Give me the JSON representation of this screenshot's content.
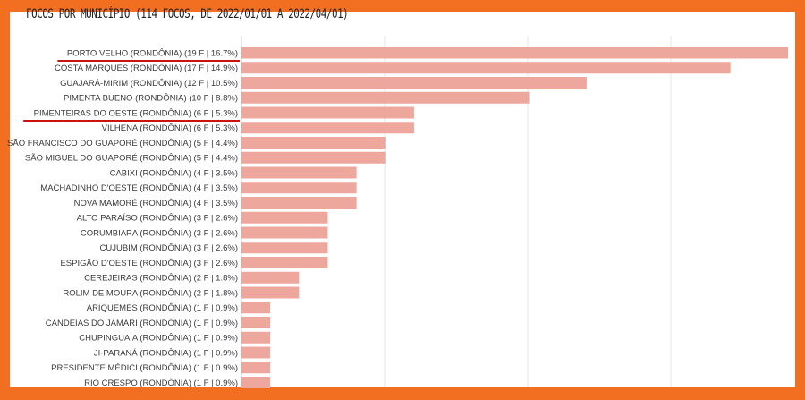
{
  "title": "FOCOS POR MUNICÍPIO (114 FOCOS, DE 2022/01/01 A 2022/04/01)",
  "colors": {
    "bar": "#eea79d",
    "frame": "#f26f21",
    "underline": "#cc1111",
    "grid": "#e6e6e6"
  },
  "chart_data": {
    "type": "bar",
    "orientation": "horizontal",
    "title": "FOCOS POR MUNICÍPIO (114 FOCOS, DE 2022/01/01 A 2022/04/01)",
    "xlabel": "",
    "ylabel": "",
    "xlim": [
      0,
      19
    ],
    "grid": true,
    "underlined_categories": [
      "PORTO VELHO (RONDÔNIA) (19 F | 16.7%)",
      "PIMENTEIRAS DO OESTE (RONDÔNIA) (6 F | 5.3%)"
    ],
    "categories": [
      "PORTO VELHO (RONDÔNIA) (19 F | 16.7%)",
      "COSTA MARQUES (RONDÔNIA) (17 F | 14.9%)",
      "GUAJARÁ-MIRIM (RONDÔNIA) (12 F | 10.5%)",
      "PIMENTA BUENO (RONDÔNIA) (10 F | 8.8%)",
      "PIMENTEIRAS DO OESTE (RONDÔNIA) (6 F | 5.3%)",
      "VILHENA (RONDÔNIA) (6 F | 5.3%)",
      "SÃO FRANCISCO DO GUAPORÉ (RONDÔNIA) (5 F | 4.4%)",
      "SÃO MIGUEL DO GUAPORÉ (RONDÔNIA) (5 F | 4.4%)",
      "CABIXI (RONDÔNIA) (4 F | 3.5%)",
      "MACHADINHO D'OESTE (RONDÔNIA) (4 F | 3.5%)",
      "NOVA MAMORÉ (RONDÔNIA) (4 F | 3.5%)",
      "ALTO PARAÍSO (RONDÔNIA) (3 F | 2.6%)",
      "CORUMBIARA (RONDÔNIA) (3 F | 2.6%)",
      "CUJUBIM (RONDÔNIA) (3 F | 2.6%)",
      "ESPIGÃO D'OESTE (RONDÔNIA) (3 F | 2.6%)",
      "CEREJEIRAS (RONDÔNIA) (2 F | 1.8%)",
      "ROLIM DE MOURA (RONDÔNIA) (2 F | 1.8%)",
      "ARIQUEMES (RONDÔNIA) (1 F | 0.9%)",
      "CANDEIAS DO JAMARI (RONDÔNIA) (1 F | 0.9%)",
      "CHUPINGUAIA (RONDÔNIA) (1 F | 0.9%)",
      "JI-PARANÁ (RONDÔNIA) (1 F | 0.9%)",
      "PRESIDENTE MÉDICI (RONDÔNIA) (1 F | 0.9%)",
      "RIO CRESPO (RONDÔNIA) (1 F | 0.9%)"
    ],
    "values": [
      19,
      17,
      12,
      10,
      6,
      6,
      5,
      5,
      4,
      4,
      4,
      3,
      3,
      3,
      3,
      2,
      2,
      1,
      1,
      1,
      1,
      1,
      1
    ]
  }
}
